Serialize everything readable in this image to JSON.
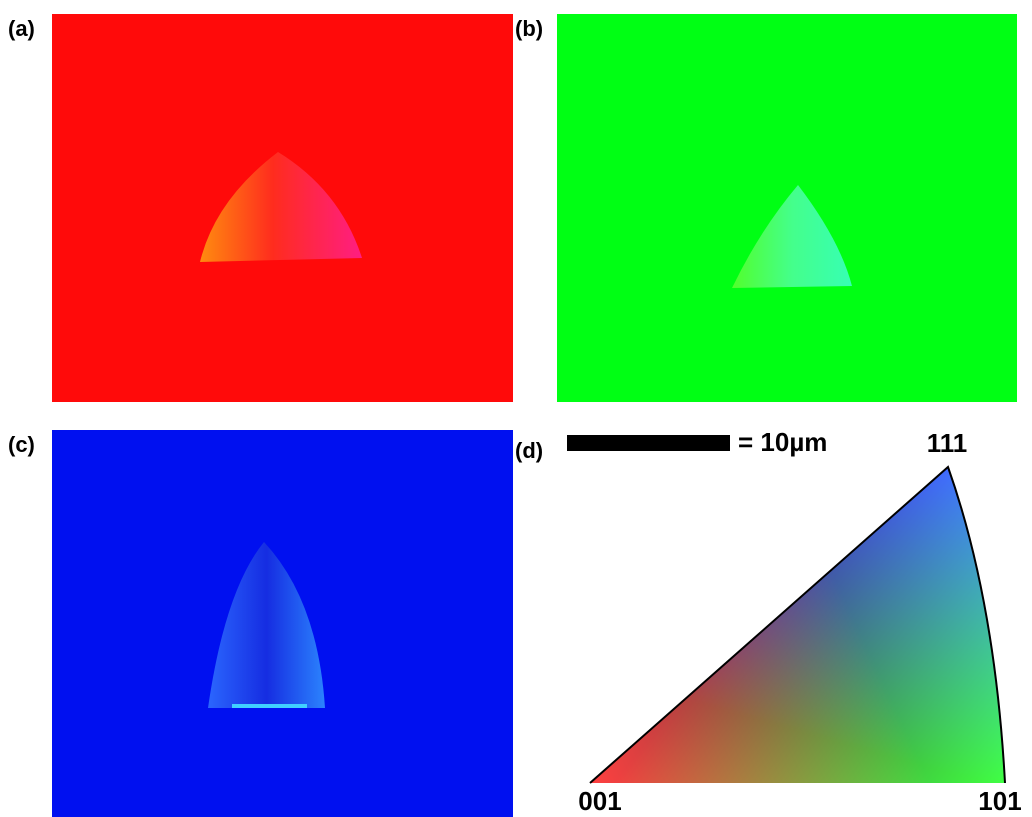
{
  "panels": [
    {
      "label": "(a)"
    },
    {
      "label": "(b)"
    },
    {
      "label": "(c)"
    },
    {
      "label": "(d)"
    }
  ],
  "scale_bar": {
    "label": "= 10µm"
  },
  "ipf_triangle": {
    "apex_label": "111",
    "left_label": "001",
    "right_label": "101"
  }
}
